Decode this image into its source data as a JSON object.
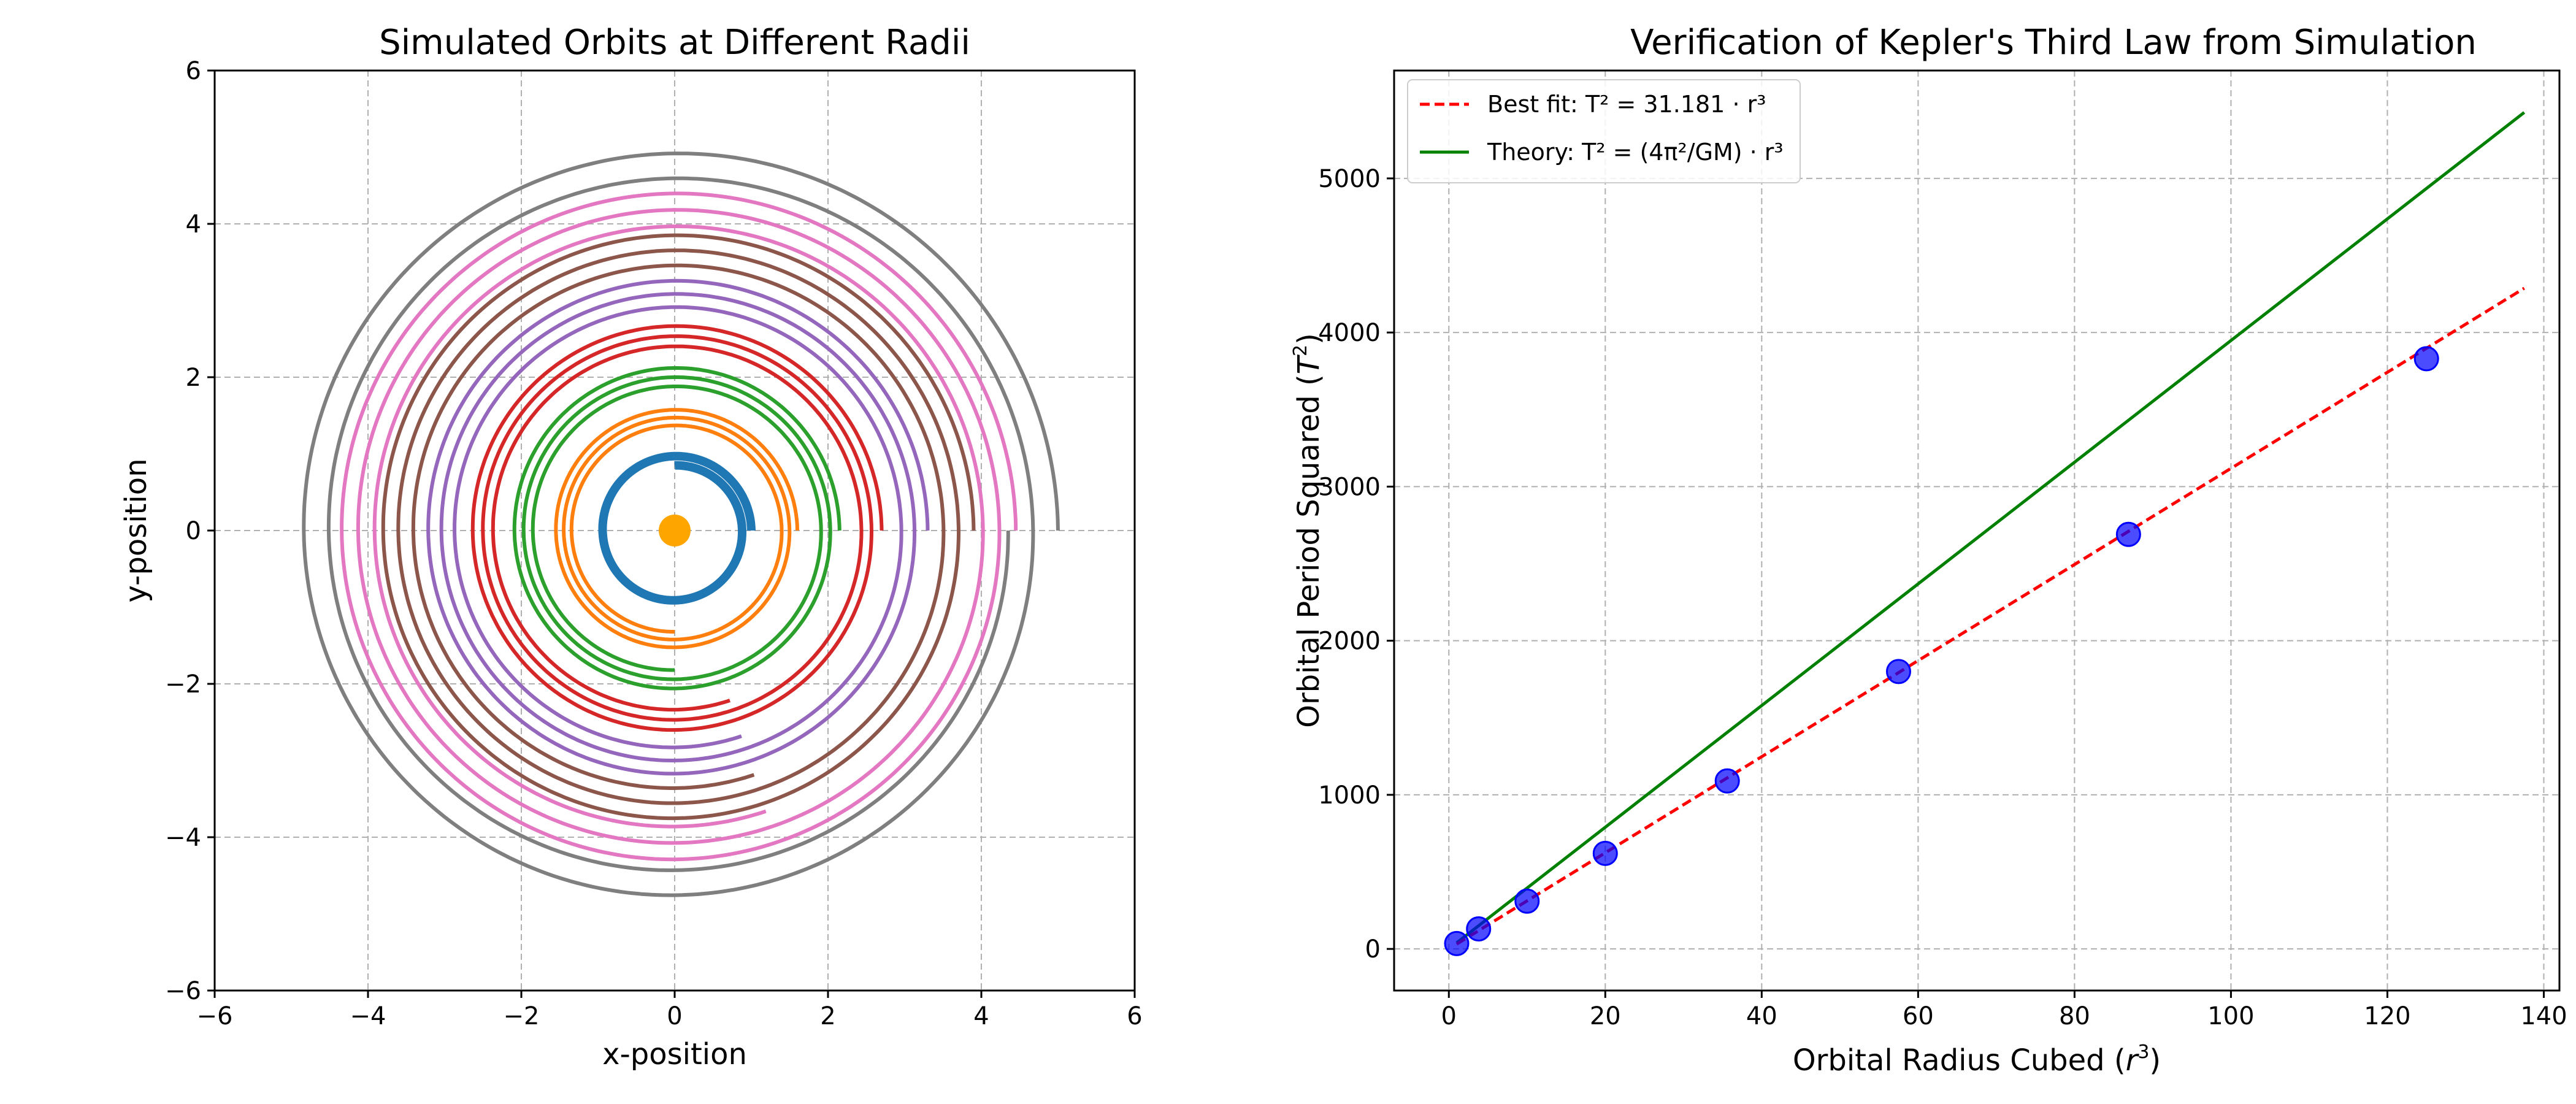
{
  "chart_data": [
    {
      "type": "line",
      "title": "Simulated Orbits at Different Radii",
      "xlabel": "x-position",
      "ylabel": "y-position",
      "xlim": [
        -6,
        6
      ],
      "ylim": [
        -6,
        6
      ],
      "xticks": [
        -6,
        -4,
        -2,
        0,
        2,
        4,
        6
      ],
      "yticks": [
        -6,
        -4,
        -2,
        0,
        2,
        4,
        6
      ],
      "xtick_labels": [
        "−6",
        "−4",
        "−2",
        "0",
        "2",
        "4",
        "6"
      ],
      "ytick_labels": [
        "−6",
        "−4",
        "−2",
        "0",
        "2",
        "4",
        "6"
      ],
      "grid": true,
      "grid_style": "dashed",
      "central_body": {
        "x": 0,
        "y": 0,
        "color": "#ffa500"
      },
      "series": [
        {
          "color": "#1f77b4",
          "start_radius": 1.0,
          "end_radius": 0.85,
          "turns": 1.25
        },
        {
          "color": "#ff7f0e",
          "start_radius": 1.6,
          "end_radius": 1.32,
          "turns": 2.75
        },
        {
          "color": "#2ca02c",
          "start_radius": 2.15,
          "end_radius": 1.82,
          "turns": 2.75
        },
        {
          "color": "#d62728",
          "start_radius": 2.7,
          "end_radius": 2.33,
          "turns": 2.8
        },
        {
          "color": "#9467bd",
          "start_radius": 3.3,
          "end_radius": 2.82,
          "turns": 2.8
        },
        {
          "color": "#8c564b",
          "start_radius": 3.9,
          "end_radius": 3.35,
          "turns": 2.8
        },
        {
          "color": "#e377c2",
          "start_radius": 4.45,
          "end_radius": 3.85,
          "turns": 2.8
        },
        {
          "color": "#7f7f7f",
          "start_radius": 5.0,
          "end_radius": 4.35,
          "turns": 2.0
        }
      ]
    },
    {
      "type": "scatter",
      "title": "Verification of Kepler's Third Law from Simulation",
      "xlabel_main": "Orbital Radius Cubed (",
      "xlabel_var": "r",
      "xlabel_sup": "3",
      "xlabel_end": ")",
      "ylabel_main": "Orbital Period Squared (",
      "ylabel_var": "T",
      "ylabel_sup": "2",
      "ylabel_end": ")",
      "xlim": [
        -7,
        142
      ],
      "ylim": [
        -270,
        5700
      ],
      "xticks": [
        0,
        20,
        40,
        60,
        80,
        100,
        120,
        140
      ],
      "yticks": [
        0,
        1000,
        2000,
        3000,
        4000,
        5000
      ],
      "xtick_labels": [
        "0",
        "20",
        "40",
        "60",
        "80",
        "100",
        "120",
        "140"
      ],
      "ytick_labels": [
        "0",
        "1000",
        "2000",
        "3000",
        "4000",
        "5000"
      ],
      "grid": true,
      "grid_style": "dashed",
      "legend_position": "top-left",
      "points": {
        "x": [
          1.0,
          3.8,
          10.0,
          20.0,
          35.6,
          57.5,
          86.9,
          125.0
        ],
        "y": [
          35,
          130,
          310,
          620,
          1090,
          1800,
          2690,
          3830
        ],
        "color": "#0000ff"
      },
      "fit_line": {
        "x": [
          1.0,
          137.5
        ],
        "y": [
          31.181,
          4287.4
        ],
        "color": "#ff0000",
        "style": "dashed",
        "label_prefix": "Best fit: ",
        "label_formula": "T² = 31.181 · r³"
      },
      "theory_line": {
        "x": [
          1.0,
          137.5
        ],
        "y": [
          39.48,
          5428.0
        ],
        "color": "#008000",
        "style": "solid",
        "label_prefix": "Theory: ",
        "label_formula": "T² = (4π²/GM) · r³"
      }
    }
  ]
}
